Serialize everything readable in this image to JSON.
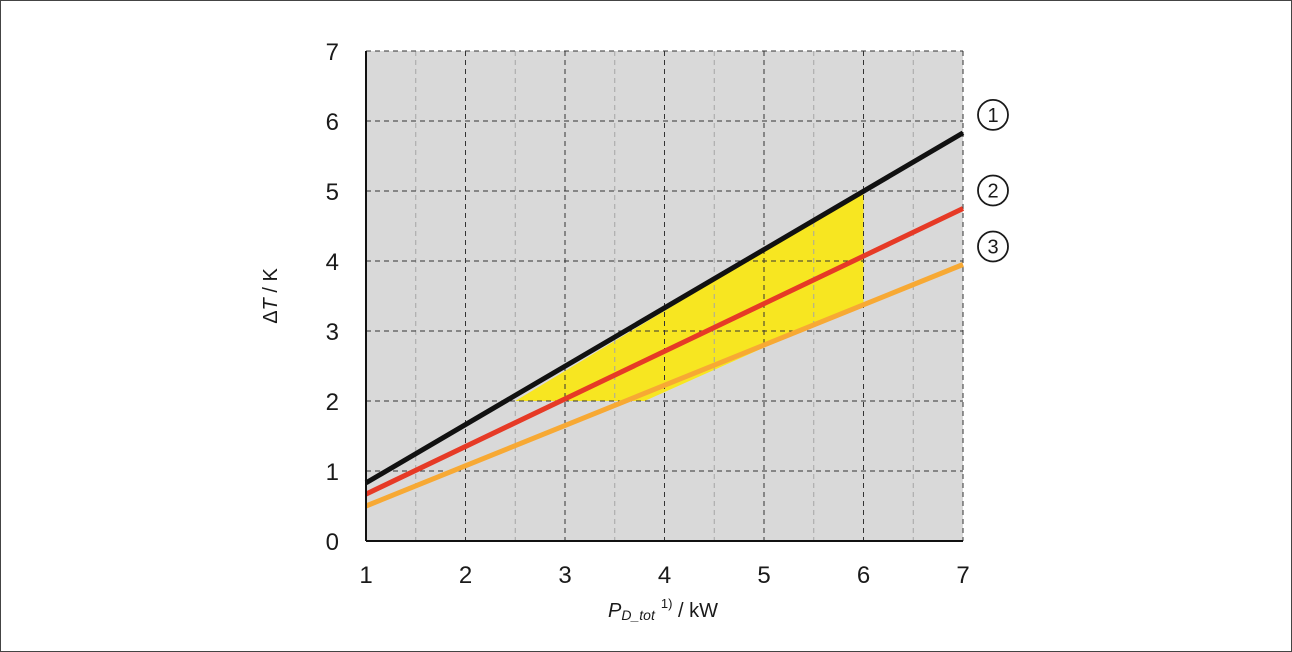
{
  "chart_data": {
    "type": "line",
    "x_ticks": [
      "1",
      "2",
      "3",
      "4",
      "5",
      "6",
      "7"
    ],
    "y_ticks": [
      "0",
      "1",
      "2",
      "3",
      "4",
      "5",
      "6",
      "7"
    ],
    "xlim": [
      1,
      7
    ],
    "ylim": [
      0,
      7
    ],
    "grid": true,
    "xlabel": {
      "symbol": "P",
      "subscript": "D_tot",
      "superscript": "1)",
      "unit": " / kW"
    },
    "ylabel": {
      "symbol_delta": "Δ",
      "symbol": "T",
      "unit": " / K"
    },
    "series": [
      {
        "name": "1",
        "color": "#111111",
        "x": [
          1,
          7
        ],
        "y": [
          0.83,
          5.83
        ]
      },
      {
        "name": "2",
        "color": "#e63a26",
        "x": [
          1,
          7
        ],
        "y": [
          0.67,
          4.75
        ]
      },
      {
        "name": "3",
        "color": "#f7a934",
        "x": [
          1,
          7
        ],
        "y": [
          0.5,
          3.95
        ]
      }
    ],
    "highlight_region": {
      "color": "#f7e621",
      "polygon": [
        [
          2.5,
          2.0
        ],
        [
          3.8,
          2.0
        ],
        [
          6.0,
          3.4
        ],
        [
          6.0,
          5.0
        ]
      ]
    },
    "colors": {
      "plot_background": "#d9d9d9",
      "grid_major": "#333333",
      "grid_minor": "#a6a6a6"
    }
  }
}
